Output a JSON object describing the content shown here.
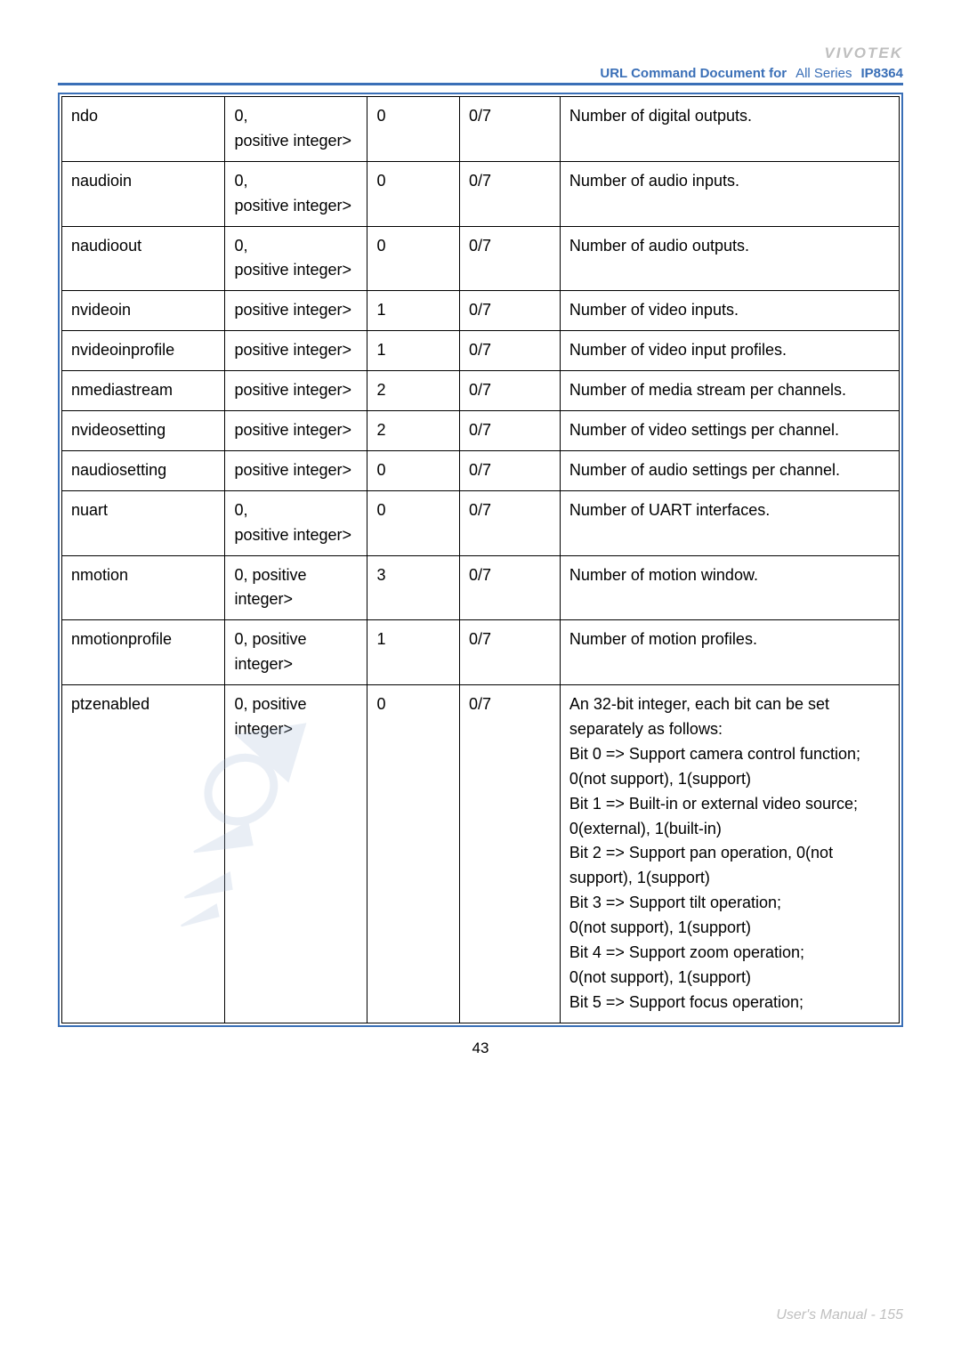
{
  "header": {
    "brand": "VIVOTEK",
    "doc_title_left": "URL Command Document for",
    "doc_title_mid": "All Series",
    "doc_title_right": "IP8364"
  },
  "table": {
    "colwidths": [
      "19.5%",
      "17%",
      "11%",
      "12%",
      "40.5%"
    ],
    "rows": [
      {
        "c1": "ndo",
        "c2": "0,\npositive integer>",
        "c3": "0",
        "c4": "0/7",
        "c5": "Number of digital outputs."
      },
      {
        "c1": "naudioin",
        "c2": "0,\npositive integer>",
        "c3": "0",
        "c4": "0/7",
        "c5": "Number of audio inputs."
      },
      {
        "c1": "naudioout",
        "c2": "0,\npositive integer>",
        "c3": "0",
        "c4": "0/7",
        "c5": "Number of audio outputs."
      },
      {
        "c1": "nvideoin",
        "c2": "positive integer>",
        "c3": "1",
        "c4": "0/7",
        "c5": "Number of video inputs."
      },
      {
        "c1": "nvideoinprofile",
        "c2": "positive integer>",
        "c3": "1",
        "c4": "0/7",
        "c5": "Number of video input profiles."
      },
      {
        "c1": "nmediastream",
        "c2": "positive integer>",
        "c3": "2",
        "c4": "0/7",
        "c5": "Number of media stream per channels."
      },
      {
        "c1": "nvideosetting",
        "c2": "positive integer>",
        "c3": "2",
        "c4": "0/7",
        "c5": "Number of video settings per channel."
      },
      {
        "c1": "naudiosetting",
        "c2": "positive integer>",
        "c3": "0",
        "c4": "0/7",
        "c5": "Number of audio settings per channel."
      },
      {
        "c1": "nuart",
        "c2": "0,\npositive integer>",
        "c3": "0",
        "c4": "0/7",
        "c5": "Number of UART interfaces."
      },
      {
        "c1": "nmotion",
        "c2": "0, positive integer>",
        "c3": "3",
        "c4": "0/7",
        "c5": "Number of motion window."
      },
      {
        "c1": "nmotionprofile",
        "c2": "0, positive integer>",
        "c3": "1",
        "c4": "0/7",
        "c5": "Number of motion profiles."
      },
      {
        "c1": "ptzenabled",
        "c2": "0, positive integer>",
        "c3": "0",
        "c4": "0/7",
        "c5": "An 32-bit integer, each bit can be set separately as follows:\nBit 0 => Support camera control function;\n0(not support), 1(support)\nBit 1 => Built-in or external video source;\n0(external), 1(built-in)\nBit 2 => Support pan operation, 0(not support), 1(support)\nBit 3 => Support tilt operation;\n0(not support), 1(support)\nBit 4 => Support zoom operation;\n0(not support), 1(support)\nBit 5 => Support focus operation;"
      }
    ]
  },
  "footer": {
    "page_num": "43",
    "manual": "User's Manual - 155"
  },
  "colors": {
    "frame": "#3a6fb7",
    "brand_grey": "#bfbfbf"
  }
}
